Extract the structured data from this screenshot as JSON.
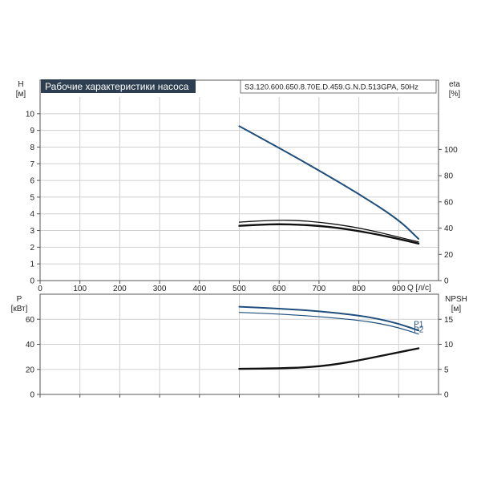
{
  "chart_data": [
    {
      "type": "line",
      "title": "Рабочие характеристики насоса",
      "model": "S3.120.600.650.8.70E.D.459.G.N.D.513GPA, 50Hz",
      "y_left_label": "H",
      "y_left_unit": "[м]",
      "y_right_label": "eta",
      "y_right_unit": "[%]",
      "x_label": "Q [л/с]",
      "xlim": [
        0,
        1000
      ],
      "x_ticks": [
        "0",
        "100",
        "200",
        "300",
        "400",
        "500",
        "600",
        "700",
        "800",
        "900"
      ],
      "ylim_left": [
        0,
        11
      ],
      "y_left_ticks": [
        "0",
        "1",
        "2",
        "3",
        "4",
        "5",
        "6",
        "7",
        "8",
        "9",
        "10"
      ],
      "ylim_right": [
        0,
        140
      ],
      "y_right_ticks": [
        "0",
        "20",
        "40",
        "60",
        "80",
        "100"
      ],
      "grid": true,
      "series": [
        {
          "axis": "left",
          "color": "#1f4e7d",
          "width": 2,
          "x": [
            500,
            600,
            700,
            800,
            900,
            950
          ],
          "y": [
            9.25,
            7.95,
            6.6,
            5.2,
            3.65,
            2.5
          ]
        },
        {
          "axis": "left",
          "color": "#111111",
          "width": 1.3,
          "x": [
            500,
            550,
            600,
            650,
            700,
            750,
            800,
            850,
            900,
            950
          ],
          "y": [
            3.5,
            3.58,
            3.62,
            3.6,
            3.5,
            3.35,
            3.15,
            2.9,
            2.6,
            2.32
          ]
        },
        {
          "axis": "left",
          "color": "#111111",
          "width": 2.4,
          "x": [
            500,
            550,
            600,
            650,
            700,
            750,
            800,
            850,
            900,
            950
          ],
          "y": [
            3.28,
            3.35,
            3.38,
            3.35,
            3.28,
            3.15,
            2.97,
            2.75,
            2.5,
            2.22
          ]
        }
      ]
    },
    {
      "type": "line",
      "y_left_label": "P",
      "y_left_unit": "[кВт]",
      "y_right_label": "NPSH",
      "y_right_unit": "[м]",
      "xlim": [
        0,
        1000
      ],
      "ylim_left": [
        0,
        80
      ],
      "y_left_ticks": [
        "0",
        "20",
        "40",
        "60"
      ],
      "ylim_right": [
        0,
        20
      ],
      "y_right_ticks": [
        "0",
        "5",
        "10",
        "15"
      ],
      "grid": true,
      "series": [
        {
          "name": "P1",
          "axis": "left",
          "color": "#1f4e7d",
          "width": 2,
          "label_color": "#1f4e7d",
          "x": [
            500,
            600,
            700,
            800,
            850,
            900,
            950
          ],
          "y": [
            70,
            68.5,
            66.5,
            63,
            60.3,
            56.5,
            51
          ]
        },
        {
          "name": "P2",
          "axis": "left",
          "color": "#1f4e7d",
          "width": 1.2,
          "label_color": "#1f4e7d",
          "x": [
            500,
            600,
            700,
            800,
            850,
            900,
            950
          ],
          "y": [
            65.5,
            64.2,
            62.2,
            59.2,
            56.8,
            53.3,
            48.2
          ]
        },
        {
          "axis": "right",
          "color": "#111111",
          "width": 2.4,
          "x": [
            500,
            600,
            650,
            700,
            750,
            800,
            850,
            900,
            950
          ],
          "y": [
            5.1,
            5.2,
            5.35,
            5.6,
            6.1,
            6.8,
            7.6,
            8.4,
            9.2
          ]
        }
      ]
    }
  ]
}
